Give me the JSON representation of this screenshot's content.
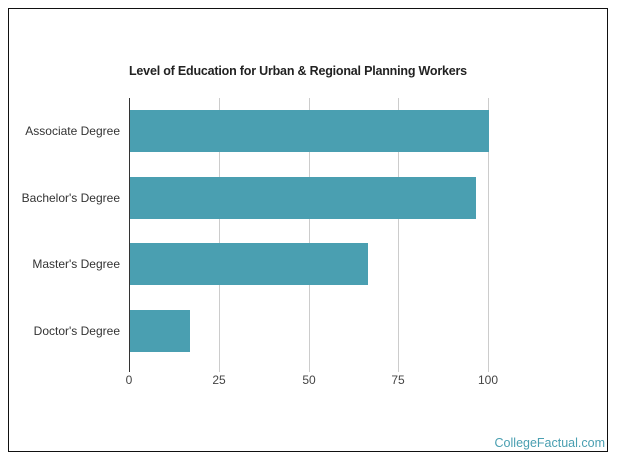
{
  "chart_data": {
    "type": "bar",
    "orientation": "horizontal",
    "title": "Level of Education for Urban & Regional Planning Workers",
    "categories": [
      "Associate Degree",
      "Bachelor's Degree",
      "Master's Degree",
      "Doctor's Degree"
    ],
    "values": [
      100,
      96.5,
      66.3,
      16.7
    ],
    "xlabel": "",
    "ylabel": "",
    "xlim": [
      0,
      100
    ],
    "xticks": [
      "0",
      "25",
      "50",
      "75",
      "100"
    ],
    "grid": true,
    "legend": null,
    "bar_color": "#4a9fb1"
  },
  "watermark": "CollegeFactual.com"
}
